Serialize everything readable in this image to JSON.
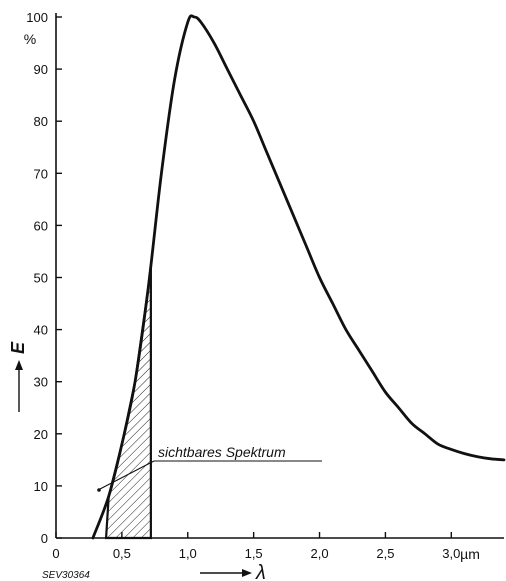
{
  "chart_data": {
    "type": "line",
    "title": "",
    "xlabel": "λ",
    "ylabel": "E",
    "y_unit": "%",
    "x_unit": "µm",
    "xlim": [
      0,
      3.4
    ],
    "ylim": [
      0,
      100
    ],
    "x_ticks": [
      0,
      0.5,
      1.0,
      1.5,
      2.0,
      2.5,
      3.0
    ],
    "x_tick_labels": [
      "0",
      "0,5",
      "1,0",
      "1,5",
      "2,0",
      "2,5",
      "3,0"
    ],
    "y_ticks": [
      0,
      10,
      20,
      30,
      40,
      50,
      60,
      70,
      80,
      90,
      100
    ],
    "y_tick_labels": [
      "0",
      "10",
      "20",
      "30",
      "40",
      "50",
      "60",
      "70",
      "80",
      "90",
      "100"
    ],
    "grid": false,
    "series": [
      {
        "x": [
          0.28,
          0.4,
          0.5,
          0.6,
          0.7,
          0.8,
          0.9,
          1.0,
          1.05,
          1.1,
          1.2,
          1.3,
          1.4,
          1.5,
          1.6,
          1.7,
          1.8,
          1.9,
          2.0,
          2.1,
          2.2,
          2.3,
          2.4,
          2.5,
          2.6,
          2.7,
          2.8,
          2.9,
          3.0,
          3.1,
          3.2,
          3.3,
          3.4
        ],
        "y": [
          0,
          8,
          18,
          30,
          48,
          70,
          88,
          99,
          100,
          99,
          95,
          90,
          85,
          80,
          74,
          68,
          62,
          56,
          50,
          45,
          40,
          36,
          32,
          28,
          25,
          22,
          20,
          18,
          17,
          16.2,
          15.6,
          15.2,
          15
        ]
      }
    ],
    "shaded_region": {
      "label": "sichtbares Spektrum",
      "x_range": [
        0.38,
        0.72
      ]
    },
    "figure_code": "SEV30364"
  }
}
